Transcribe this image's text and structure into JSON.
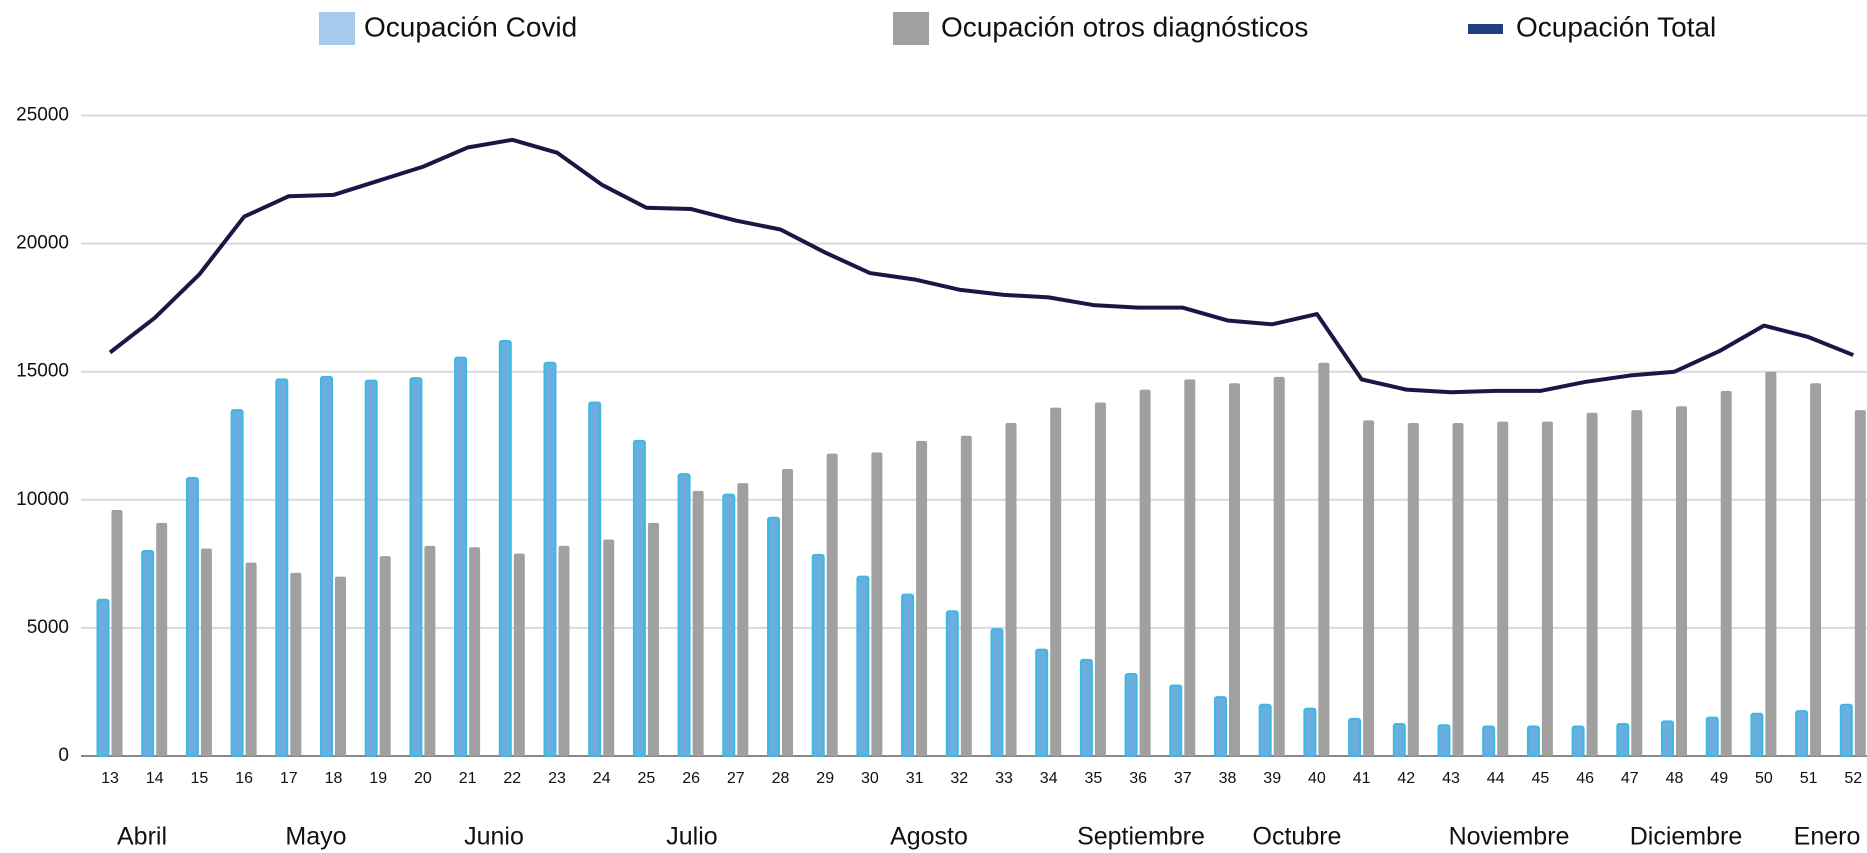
{
  "chart_data": {
    "type": "bar_line",
    "categories": [
      "13",
      "14",
      "15",
      "16",
      "17",
      "18",
      "19",
      "20",
      "21",
      "22",
      "23",
      "24",
      "25",
      "26",
      "27",
      "28",
      "29",
      "30",
      "31",
      "32",
      "33",
      "34",
      "35",
      "36",
      "37",
      "38",
      "39",
      "40",
      "41",
      "42",
      "43",
      "44",
      "45",
      "46",
      "47",
      "48",
      "49",
      "50",
      "51",
      "52"
    ],
    "months": [
      "Abril",
      "Mayo",
      "Junio",
      "Julio",
      "Agosto",
      "Septiembre",
      "Octubre",
      "Noviembre",
      "Diciembre",
      "Enero"
    ],
    "series": [
      {
        "name": "Ocupación Covid",
        "color": "#6aaee0",
        "kind": "bar",
        "values": [
          6100,
          8000,
          10850,
          13500,
          14700,
          14800,
          14650,
          14750,
          15550,
          16200,
          15350,
          13800,
          12300,
          11000,
          10200,
          9300,
          7850,
          7000,
          6300,
          5650,
          4950,
          4150,
          3750,
          3200,
          2750,
          2300,
          2000,
          1850,
          1450,
          1250,
          1200,
          1150,
          1150,
          1150,
          1250,
          1350,
          1500,
          1650,
          1750,
          2000
        ]
      },
      {
        "name": "Ocupación otros diagnósticos",
        "color": "#a0a0a0",
        "kind": "bar",
        "values": [
          9600,
          9100,
          8100,
          7550,
          7150,
          7000,
          7800,
          8200,
          8150,
          7900,
          8200,
          8450,
          9100,
          10350,
          10650,
          11200,
          11800,
          11850,
          12300,
          12500,
          13000,
          13600,
          13800,
          14300,
          14700,
          14550,
          14800,
          15350,
          13100,
          13000,
          13000,
          13050,
          13050,
          13400,
          13500,
          13650,
          14250,
          15000,
          14550,
          13500
        ]
      },
      {
        "name": "Ocupación Total",
        "color": "#1f1446",
        "kind": "line",
        "values": [
          15750,
          17100,
          18800,
          21050,
          21850,
          21900,
          22450,
          23000,
          23750,
          24050,
          23550,
          22300,
          21400,
          21350,
          20900,
          20550,
          19650,
          18850,
          18600,
          18200,
          18000,
          17900,
          17600,
          17500,
          17500,
          17000,
          16850,
          17250,
          14700,
          14300,
          14200,
          14250,
          14250,
          14600,
          14850,
          15000,
          15800,
          16800,
          16350,
          15650
        ]
      }
    ],
    "ylim": [
      0,
      25000
    ],
    "yticks": [
      0,
      5000,
      10000,
      15000,
      20000,
      25000
    ],
    "grid": true
  }
}
